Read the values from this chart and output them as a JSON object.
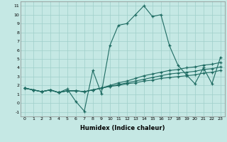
{
  "title": "",
  "xlabel": "Humidex (Indice chaleur)",
  "xlim": [
    -0.5,
    23.5
  ],
  "ylim": [
    -1.5,
    11.5
  ],
  "xticks": [
    0,
    1,
    2,
    3,
    4,
    5,
    6,
    7,
    8,
    9,
    10,
    11,
    12,
    13,
    14,
    15,
    16,
    17,
    18,
    19,
    20,
    21,
    22,
    23
  ],
  "yticks": [
    -1,
    0,
    1,
    2,
    3,
    4,
    5,
    6,
    7,
    8,
    9,
    10,
    11
  ],
  "bg_color": "#c5e8e4",
  "grid_color": "#9fcfca",
  "line_color": "#1e6b62",
  "series": [
    [
      1.7,
      1.5,
      1.3,
      1.5,
      1.2,
      1.6,
      0.2,
      -0.9,
      3.7,
      1.1,
      6.5,
      8.8,
      9.0,
      10.0,
      11.0,
      9.8,
      10.0,
      6.5,
      4.3,
      3.2,
      2.2,
      4.0,
      2.2,
      5.2
    ],
    [
      1.7,
      1.5,
      1.3,
      1.5,
      1.2,
      1.4,
      1.4,
      1.3,
      1.5,
      1.7,
      2.0,
      2.3,
      2.5,
      2.8,
      3.1,
      3.3,
      3.5,
      3.7,
      3.8,
      4.0,
      4.1,
      4.3,
      4.4,
      4.6
    ],
    [
      1.7,
      1.5,
      1.3,
      1.5,
      1.2,
      1.4,
      1.4,
      1.3,
      1.5,
      1.7,
      1.9,
      2.1,
      2.3,
      2.5,
      2.7,
      2.9,
      3.1,
      3.3,
      3.4,
      3.5,
      3.6,
      3.8,
      3.9,
      4.1
    ],
    [
      1.7,
      1.5,
      1.3,
      1.5,
      1.2,
      1.4,
      1.4,
      1.3,
      1.5,
      1.7,
      1.9,
      2.0,
      2.2,
      2.3,
      2.5,
      2.6,
      2.8,
      2.9,
      3.0,
      3.1,
      3.2,
      3.4,
      3.5,
      3.7
    ]
  ]
}
